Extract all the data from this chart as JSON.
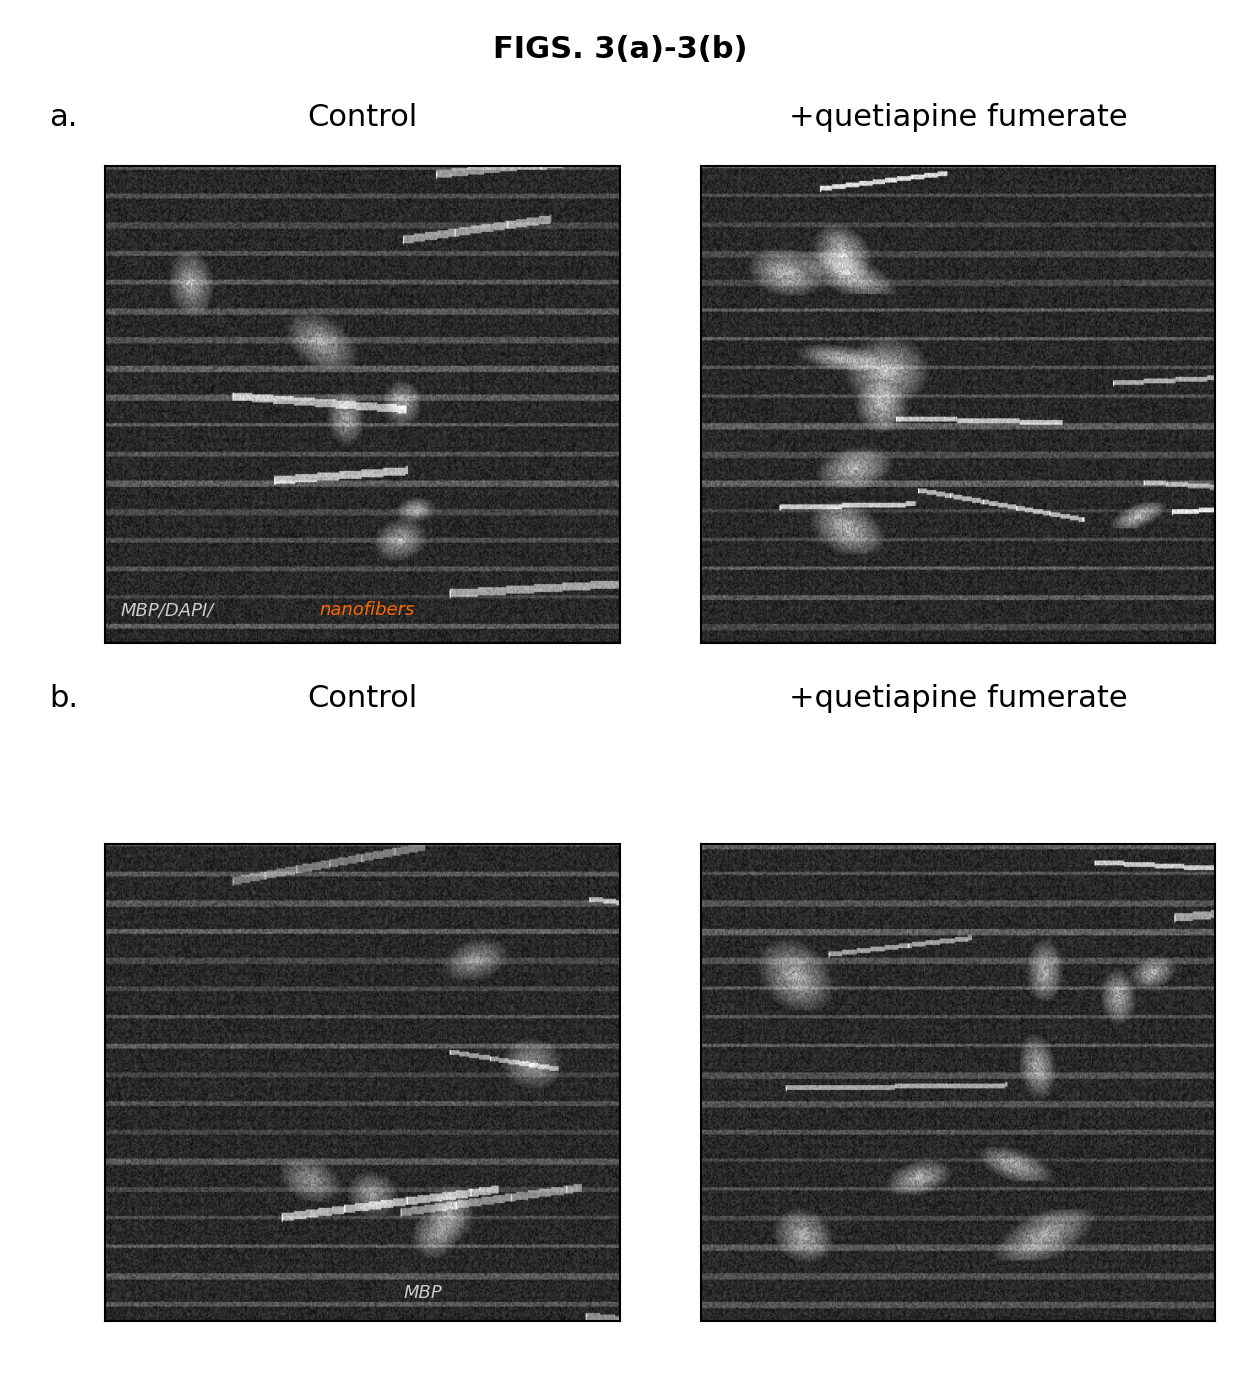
{
  "title": "FIGS. 3(a)-3(b)",
  "title_fontsize": 22,
  "title_fontweight": "bold",
  "background_color": "#ffffff",
  "panel_a_label": "a.",
  "panel_b_label": "b.",
  "left_col_label": "Control",
  "right_col_label": "+quetiapine fumerate",
  "label_fontsize": 22,
  "overlay_text_mbp_dapi": "MBP/DAPI/",
  "overlay_text_nanofibers": "nanofibers",
  "overlay_text_b": "MBP",
  "overlay_fontsize": 13,
  "nanofibers_color": "#FF6600",
  "overlay_color": "#cccccc"
}
